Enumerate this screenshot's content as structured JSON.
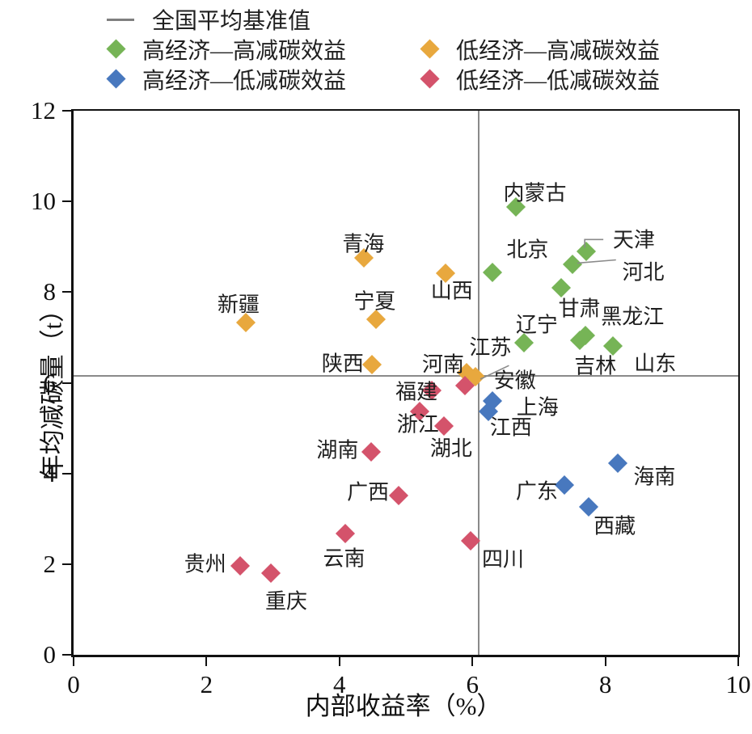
{
  "legend": {
    "baseline_label": "全国平均基准值",
    "items": [
      {
        "label": "高经济—高减碳效益",
        "color": "#76b456"
      },
      {
        "label": "低经济—高减碳效益",
        "color": "#e8a83e"
      },
      {
        "label": "高经济—低减碳效益",
        "color": "#4878be"
      },
      {
        "label": "低经济—低减碳效益",
        "color": "#d4536b"
      }
    ]
  },
  "colors": {
    "high_econ_high_carbon": "#76b456",
    "low_econ_high_carbon": "#e8a83e",
    "high_econ_low_carbon": "#4878be",
    "low_econ_low_carbon": "#d4536b",
    "baseline_gray": "#8a8a8a",
    "axis_black": "#111111"
  },
  "chart_data": {
    "type": "scatter",
    "title": "",
    "xlabel": "内部收益率（%）",
    "ylabel": "年均减碳量（t）",
    "xlim": [
      0,
      10
    ],
    "ylim": [
      0,
      12
    ],
    "xticks": [
      0,
      2,
      4,
      6,
      8,
      10
    ],
    "yticks": [
      0,
      2,
      4,
      6,
      8,
      10,
      12
    ],
    "grid": false,
    "legend_position": "top-left",
    "baselines": {
      "x": 6.1,
      "y": 6.15,
      "label": "全国平均基准值"
    },
    "series": [
      {
        "name": "高经济—高减碳效益",
        "color": "#76b456",
        "points": [
          {
            "province": "内蒙古",
            "x": 6.66,
            "y": 9.87,
            "lx": 6.94,
            "ly": 10.19
          },
          {
            "province": "北京",
            "x": 6.3,
            "y": 8.43,
            "lx": 6.83,
            "ly": 8.94
          },
          {
            "province": "天津",
            "x": 7.71,
            "y": 8.89,
            "lx": 8.43,
            "ly": 9.15
          },
          {
            "province": "河北",
            "x": 7.51,
            "y": 8.62,
            "lx": 8.57,
            "ly": 8.44
          },
          {
            "province": "甘肃",
            "x": 7.33,
            "y": 8.09,
            "lx": 7.61,
            "ly": 7.63
          },
          {
            "province": "黑龙江",
            "x": 7.7,
            "y": 7.04,
            "lx": 8.41,
            "ly": 7.45
          },
          {
            "province": "吉林",
            "x": 7.62,
            "y": 6.94,
            "lx": 7.85,
            "ly": 6.36
          },
          {
            "province": "辽宁",
            "x": 6.78,
            "y": 6.88,
            "lx": 6.97,
            "ly": 7.27
          },
          {
            "province": "山东",
            "x": 8.12,
            "y": 6.82,
            "lx": 8.75,
            "ly": 6.42
          }
        ]
      },
      {
        "name": "低经济—高减碳效益",
        "color": "#e8a83e",
        "points": [
          {
            "province": "新疆",
            "x": 2.59,
            "y": 7.32,
            "lx": 2.48,
            "ly": 7.72
          },
          {
            "province": "青海",
            "x": 4.37,
            "y": 8.75,
            "lx": 4.36,
            "ly": 9.05
          },
          {
            "province": "宁夏",
            "x": 4.55,
            "y": 7.4,
            "lx": 4.53,
            "ly": 7.8
          },
          {
            "province": "山西",
            "x": 5.6,
            "y": 8.41,
            "lx": 5.69,
            "ly": 8.03
          },
          {
            "province": "陕西",
            "x": 4.49,
            "y": 6.4,
            "lx": 4.05,
            "ly": 6.42
          },
          {
            "province": "河南",
            "x": 5.91,
            "y": 6.22,
            "lx": 5.56,
            "ly": 6.4
          },
          {
            "province": "江苏",
            "x": 6.05,
            "y": 6.14,
            "lx": 6.27,
            "ly": 6.78
          }
        ]
      },
      {
        "name": "高经济—低减碳效益",
        "color": "#4878be",
        "points": [
          {
            "province": "上海",
            "x": 6.3,
            "y": 5.6,
            "lx": 6.98,
            "ly": 5.46
          },
          {
            "province": "江西",
            "x": 6.24,
            "y": 5.37,
            "lx": 6.58,
            "ly": 5.01
          },
          {
            "province": "广东",
            "x": 7.39,
            "y": 3.75,
            "lx": 6.97,
            "ly": 3.61
          },
          {
            "province": "海南",
            "x": 8.19,
            "y": 4.23,
            "lx": 8.74,
            "ly": 3.93
          },
          {
            "province": "西藏",
            "x": 7.75,
            "y": 3.27,
            "lx": 8.14,
            "ly": 2.83
          }
        ]
      },
      {
        "name": "低经济—低减碳效益",
        "color": "#d4536b",
        "points": [
          {
            "province": "安徽",
            "x": 5.89,
            "y": 5.94,
            "lx": 6.64,
            "ly": 6.05
          },
          {
            "province": "福建",
            "x": 5.39,
            "y": 5.83,
            "lx": 5.16,
            "ly": 5.8
          },
          {
            "province": "浙江",
            "x": 5.21,
            "y": 5.37,
            "lx": 5.18,
            "ly": 5.08
          },
          {
            "province": "湖北",
            "x": 5.57,
            "y": 5.05,
            "lx": 5.68,
            "ly": 4.55
          },
          {
            "province": "湖南",
            "x": 4.48,
            "y": 4.48,
            "lx": 3.97,
            "ly": 4.51
          },
          {
            "province": "广西",
            "x": 4.89,
            "y": 3.52,
            "lx": 4.43,
            "ly": 3.59
          },
          {
            "province": "云南",
            "x": 4.09,
            "y": 2.67,
            "lx": 4.07,
            "ly": 2.12
          },
          {
            "province": "贵州",
            "x": 2.51,
            "y": 1.97,
            "lx": 1.98,
            "ly": 1.99
          },
          {
            "province": "重庆",
            "x": 2.97,
            "y": 1.8,
            "lx": 3.2,
            "ly": 1.17
          },
          {
            "province": "四川",
            "x": 5.97,
            "y": 2.51,
            "lx": 6.46,
            "ly": 2.1
          }
        ]
      }
    ],
    "callouts": [
      {
        "for": "天津",
        "points": [
          [
            7.69,
            8.98
          ],
          [
            7.69,
            9.16
          ],
          [
            7.97,
            9.16
          ]
        ]
      },
      {
        "for": "河北",
        "points": [
          [
            7.58,
            8.64
          ],
          [
            8.16,
            8.71
          ]
        ]
      },
      {
        "for": "江苏",
        "points": [
          [
            6.12,
            6.08
          ],
          [
            6.55,
            6.38
          ]
        ]
      }
    ]
  }
}
